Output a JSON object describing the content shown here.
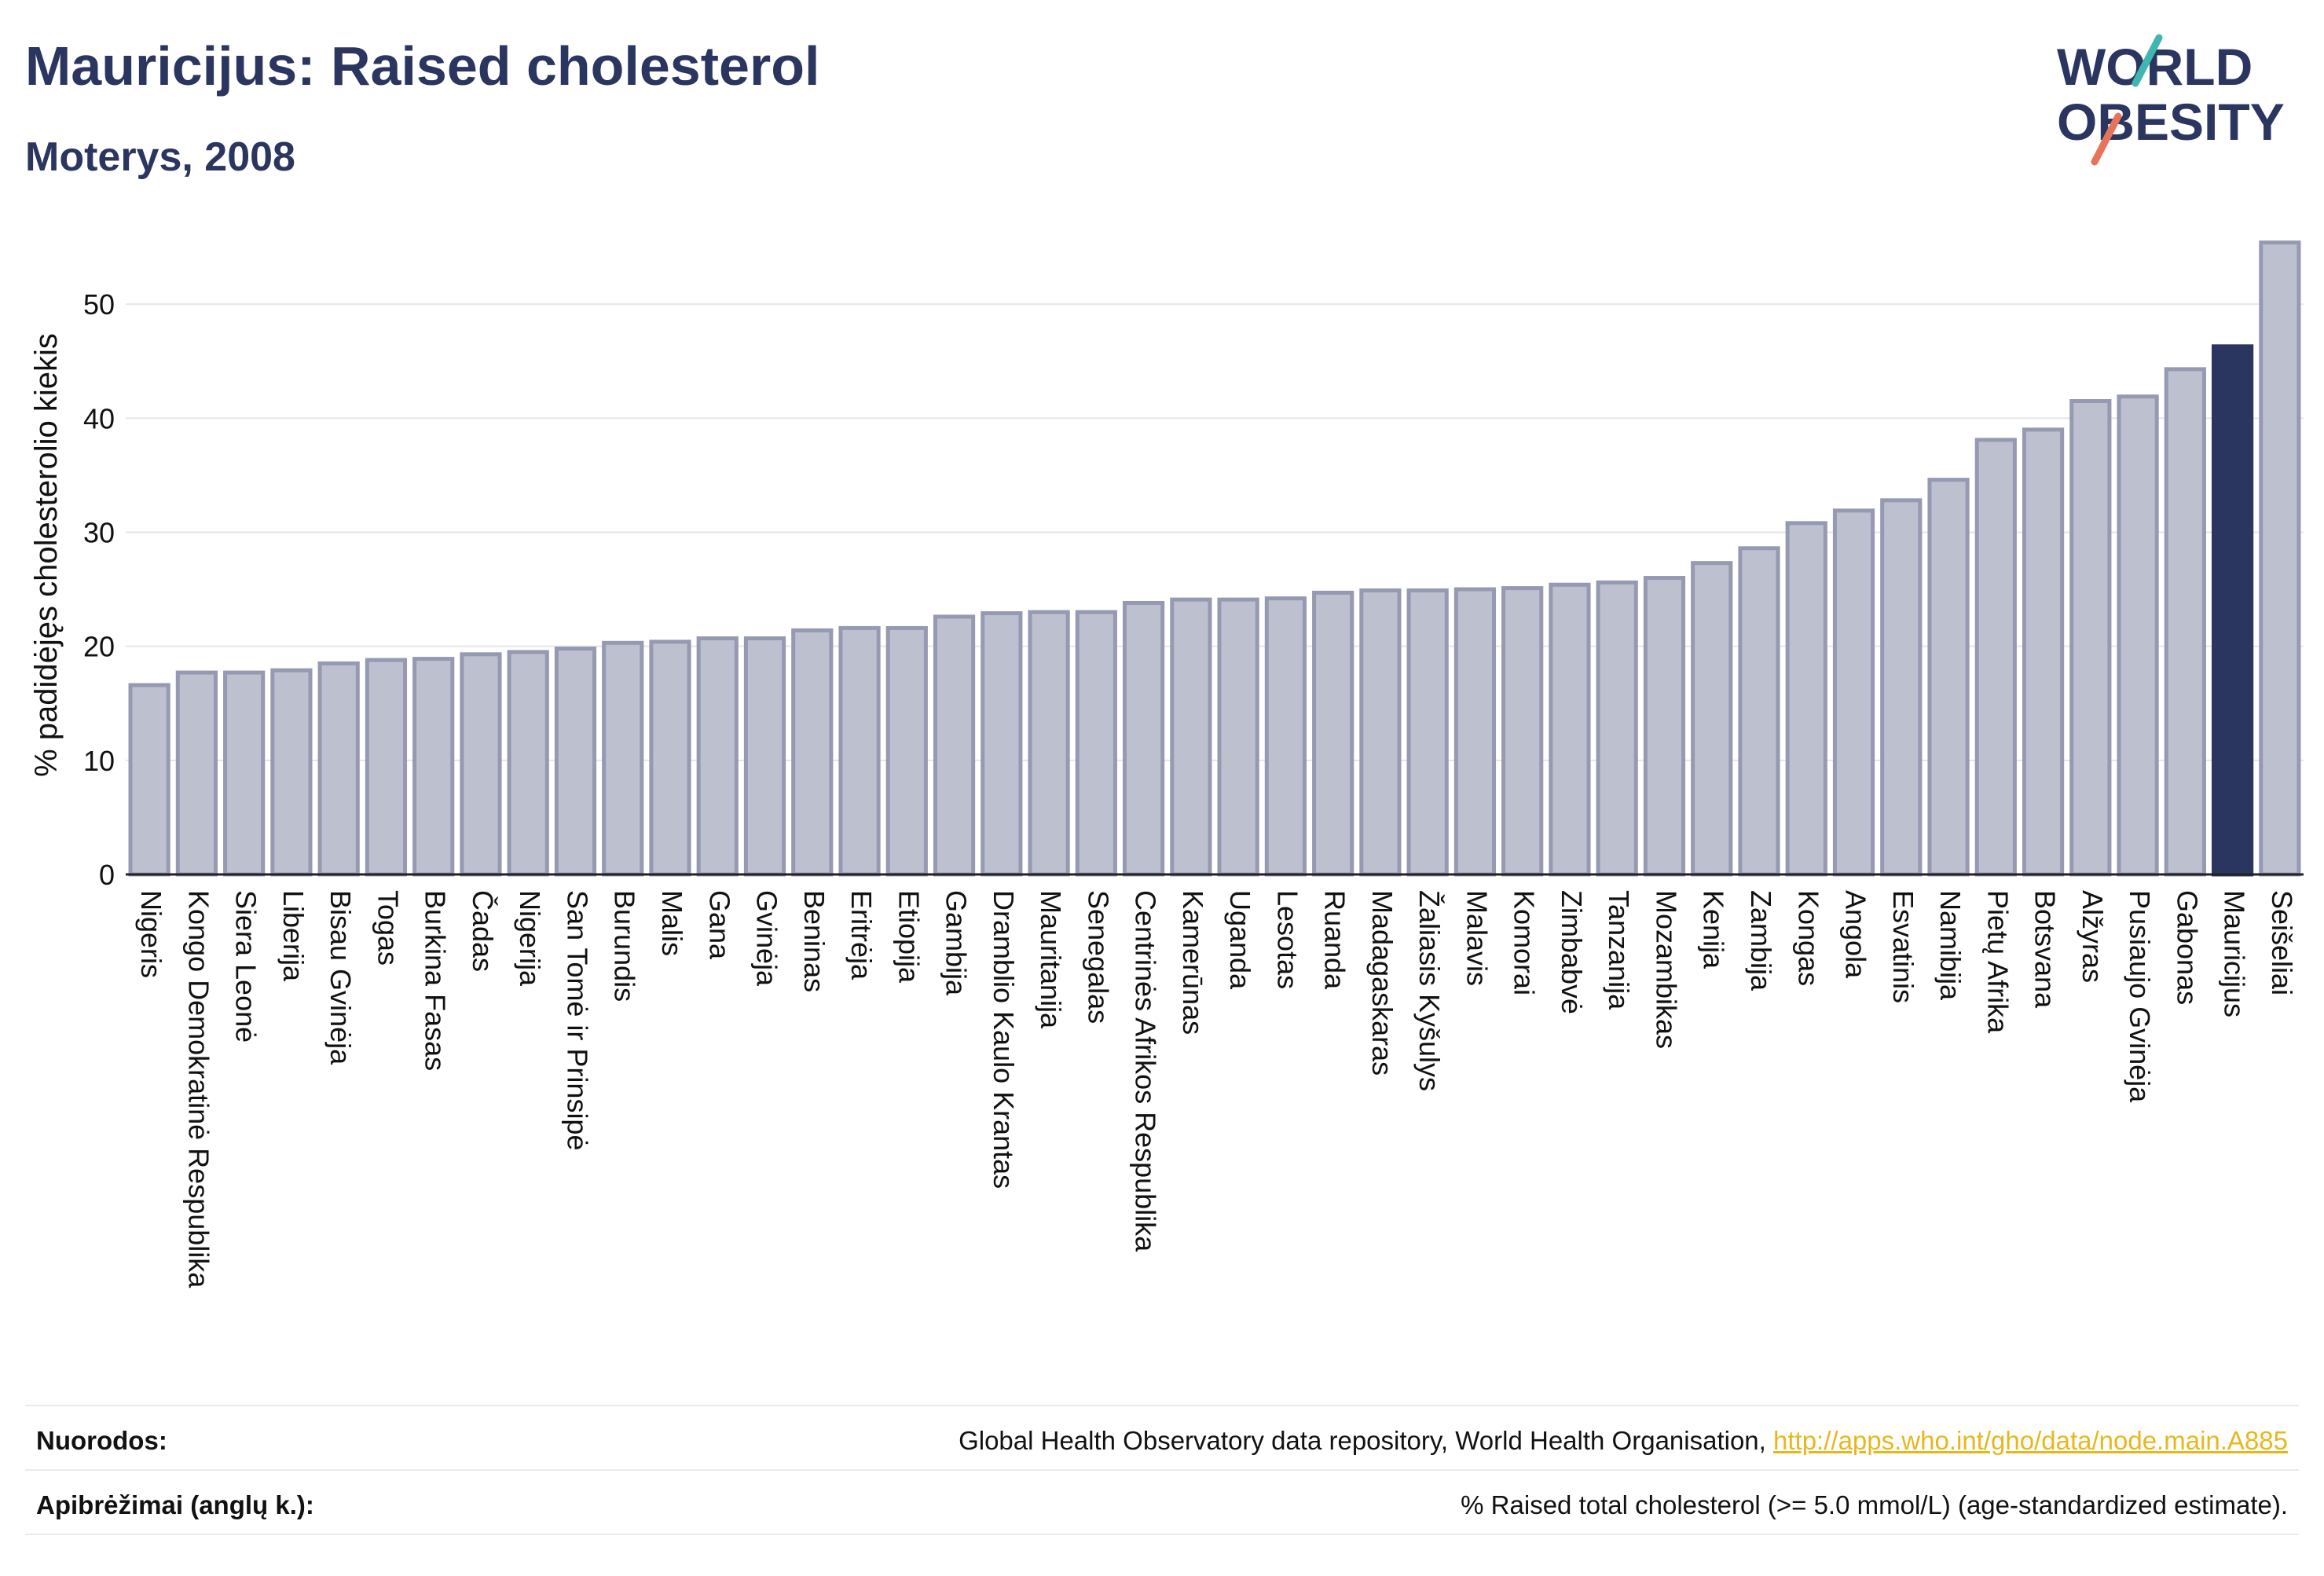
{
  "header": {
    "title": "Mauricijus: Raised cholesterol",
    "subtitle": "Moterys, 2008"
  },
  "logo": {
    "line1": "WORLD",
    "line2": "OBESITY"
  },
  "colors": {
    "title": "#2b3660",
    "bar_default_fill": "#bcc0cf",
    "bar_default_stroke": "#9599b2",
    "bar_highlight": "#2b3660",
    "logo_teal": "#3fb6b2",
    "logo_coral": "#e8735b",
    "link": "#e8b71e"
  },
  "chart_data": {
    "type": "bar",
    "title": "Mauricijus: Raised cholesterol",
    "subtitle": "Moterys, 2008",
    "ylabel": "% padidėjęs cholesterolio kiekis",
    "xlabel": "",
    "ylim": [
      0,
      56
    ],
    "yticks": [
      0,
      10,
      20,
      30,
      40,
      50
    ],
    "grid": true,
    "highlight": "Mauricijus",
    "categories": [
      "Nigeris",
      "Kongo Demokratinė Respublika",
      "Siera Leonė",
      "Liberija",
      "Bisau Gvinėja",
      "Togas",
      "Burkina Fasas",
      "Čadas",
      "Nigerija",
      "San Tomė ir Prinsipė",
      "Burundis",
      "Malis",
      "Gana",
      "Gvinėja",
      "Beninas",
      "Eritrėja",
      "Etiopija",
      "Gambija",
      "Dramblio Kaulo Krantas",
      "Mauritanija",
      "Senegalas",
      "Centrinės Afrikos Respublika",
      "Kamerūnas",
      "Uganda",
      "Lesotas",
      "Ruanda",
      "Madagaskaras",
      "Žaliasis Kyšulys",
      "Malavis",
      "Komorai",
      "Zimbabvė",
      "Tanzanija",
      "Mozambikas",
      "Kenija",
      "Zambija",
      "Kongas",
      "Angola",
      "Esvatinis",
      "Namibija",
      "Pietų Afrika",
      "Botsvana",
      "Alžyras",
      "Pusiaujo Gvinėja",
      "Gabonas",
      "Mauricijus",
      "Seišeliai"
    ],
    "values": [
      16.6,
      17.7,
      17.7,
      17.9,
      18.5,
      18.8,
      18.9,
      19.3,
      19.5,
      19.8,
      20.3,
      20.4,
      20.7,
      20.7,
      21.4,
      21.6,
      21.6,
      22.6,
      22.9,
      23.0,
      23.0,
      23.8,
      24.1,
      24.1,
      24.2,
      24.7,
      24.9,
      24.9,
      25.0,
      25.1,
      25.4,
      25.6,
      26.0,
      27.3,
      28.6,
      30.8,
      31.9,
      32.8,
      34.6,
      38.1,
      39.0,
      41.5,
      41.9,
      44.3,
      46.3,
      55.4
    ]
  },
  "footer": {
    "sources_label": "Nuorodos:",
    "sources_text": "Global Health Observatory data repository, World Health Organisation, ",
    "sources_link": "http://apps.who.int/gho/data/node.main.A885",
    "definitions_label": "Apibrėžimai (anglų k.):",
    "definitions_text": "% Raised total cholesterol (>= 5.0 mmol/L) (age-standardized estimate)."
  }
}
